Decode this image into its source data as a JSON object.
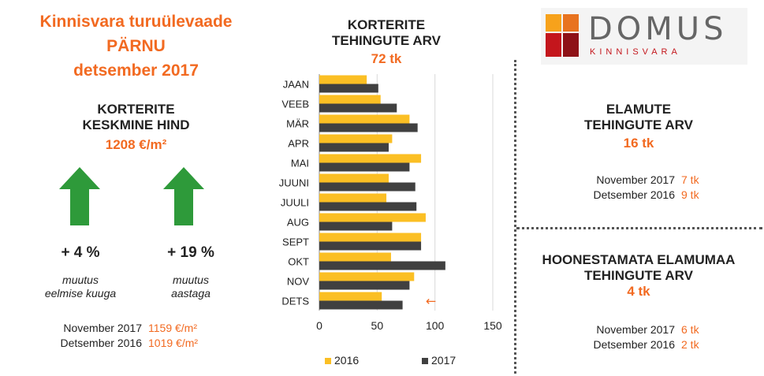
{
  "title": {
    "line1": "Kinnisvara turuülevaade",
    "line2": "PÄRNU",
    "line3": "detsember 2017"
  },
  "price": {
    "title1": "KORTERITE",
    "title2": "KESKMINE HIND",
    "value": "1208 €/m²",
    "month_change": "+ 4 %",
    "month_note1": "muutus",
    "month_note2": "eelmise kuuga",
    "year_change": "+ 19 %",
    "year_note1": "muutus",
    "year_note2": "aastaga",
    "rows": [
      {
        "label": "November  2017",
        "value": "1159 €/m²"
      },
      {
        "label": "Detsember  2016",
        "value": "1019 €/m²"
      }
    ]
  },
  "deals_chart": {
    "title1": "KORTERITE",
    "title2": "TEHINGUTE ARV",
    "value": "72 tk"
  },
  "houses": {
    "title1": "ELAMUTE",
    "title2": "TEHINGUTE ARV",
    "value": "16 tk",
    "rows": [
      {
        "label": "November  2017",
        "value": "7 tk"
      },
      {
        "label": "Detsember  2016",
        "value": "9 tk"
      }
    ]
  },
  "land": {
    "title1": "HOONESTAMATA ELAMUMAA",
    "title2": "TEHINGUTE ARV",
    "value": "4 tk",
    "rows": [
      {
        "label": "November  2017",
        "value": "6 tk"
      },
      {
        "label": "Detsember  2016",
        "value": "2 tk"
      }
    ]
  },
  "logo": {
    "name": "DOMUS",
    "sub": "KINNISVARA"
  },
  "colors": {
    "accent": "#f26a21",
    "bar2016": "#fbbf24",
    "bar2017": "#404040",
    "arrow": "#2e9a3a"
  },
  "chart_data": {
    "type": "bar",
    "orientation": "horizontal",
    "categories": [
      "JAAN",
      "VEEB",
      "MÄR",
      "APR",
      "MAI",
      "JUUNI",
      "JUULI",
      "AUG",
      "SEPT",
      "OKT",
      "NOV",
      "DETS"
    ],
    "series": [
      {
        "name": "2016",
        "values": [
          41,
          53,
          78,
          63,
          88,
          60,
          58,
          92,
          88,
          62,
          82,
          54
        ]
      },
      {
        "name": "2017",
        "values": [
          51,
          67,
          85,
          60,
          78,
          83,
          84,
          63,
          88,
          109,
          78,
          72
        ]
      }
    ],
    "xlim": [
      0,
      150
    ],
    "xticks": [
      "0",
      "50",
      "100",
      "150"
    ],
    "legend_position": "bottom",
    "annotation": "←"
  }
}
